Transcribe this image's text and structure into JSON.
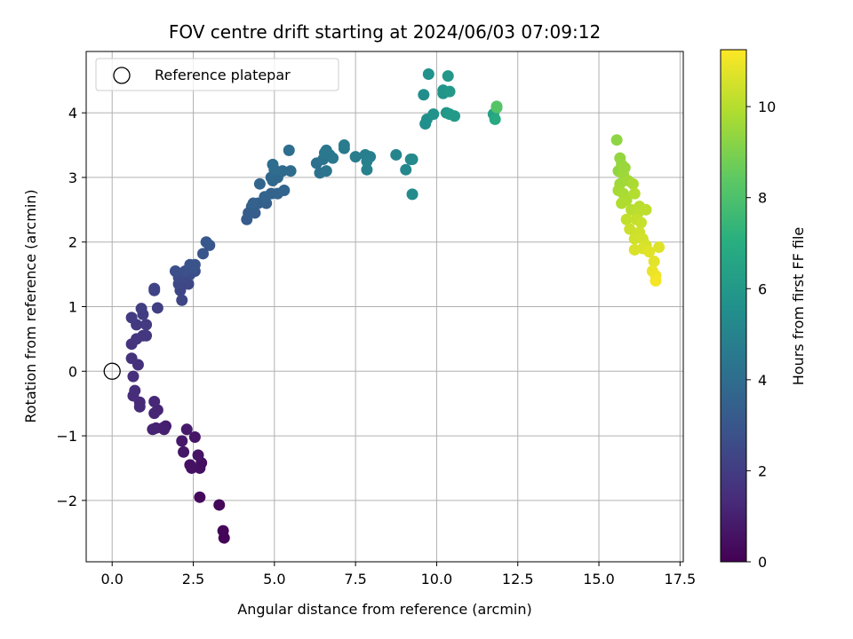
{
  "chart_data": {
    "type": "scatter",
    "title": "FOV centre drift starting at 2024/06/03 07:09:12",
    "xlabel": "Angular distance from reference (arcmin)",
    "ylabel": "Rotation from reference (arcmin)",
    "xlim": [
      -0.8,
      17.6
    ],
    "ylim": [
      -2.95,
      4.95
    ],
    "xticks": [
      0.0,
      2.5,
      5.0,
      7.5,
      10.0,
      12.5,
      15.0,
      17.5
    ],
    "xtick_labels": [
      "0.0",
      "2.5",
      "5.0",
      "7.5",
      "10.0",
      "12.5",
      "15.0",
      "17.5"
    ],
    "yticks": [
      -2,
      -1,
      0,
      1,
      2,
      3,
      4
    ],
    "ytick_labels": [
      "−2",
      "−1",
      "0",
      "1",
      "2",
      "3",
      "4"
    ],
    "grid": true,
    "legend": {
      "position": "top-left",
      "entries": [
        "Reference platepar"
      ]
    },
    "reference_point": {
      "x": 0.0,
      "y": 0.0,
      "label": "Reference platepar"
    },
    "colorbar": {
      "label": "Hours from first FF file",
      "colormap": "viridis",
      "range": [
        0,
        11.25
      ],
      "ticks": [
        0,
        2,
        4,
        6,
        8,
        10
      ],
      "tick_labels": [
        "0",
        "2",
        "4",
        "6",
        "8",
        "10"
      ]
    },
    "points": [
      {
        "x": 3.45,
        "y": -2.58,
        "c": 0.1
      },
      {
        "x": 3.42,
        "y": -2.47,
        "c": 0.15
      },
      {
        "x": 3.3,
        "y": -2.07,
        "c": 0.2
      },
      {
        "x": 2.7,
        "y": -1.95,
        "c": 0.3
      },
      {
        "x": 2.75,
        "y": -1.42,
        "c": 0.4
      },
      {
        "x": 2.7,
        "y": -1.5,
        "c": 0.45
      },
      {
        "x": 2.4,
        "y": -1.45,
        "c": 0.5
      },
      {
        "x": 2.45,
        "y": -1.5,
        "c": 0.55
      },
      {
        "x": 2.65,
        "y": -1.3,
        "c": 0.6
      },
      {
        "x": 2.55,
        "y": -1.02,
        "c": 0.65
      },
      {
        "x": 2.2,
        "y": -1.25,
        "c": 0.7
      },
      {
        "x": 2.15,
        "y": -1.08,
        "c": 0.75
      },
      {
        "x": 2.3,
        "y": -0.9,
        "c": 0.8
      },
      {
        "x": 1.65,
        "y": -0.85,
        "c": 0.9
      },
      {
        "x": 1.6,
        "y": -0.9,
        "c": 0.95
      },
      {
        "x": 1.55,
        "y": -0.88,
        "c": 1.0
      },
      {
        "x": 1.35,
        "y": -0.88,
        "c": 1.05
      },
      {
        "x": 1.25,
        "y": -0.9,
        "c": 1.1
      },
      {
        "x": 1.4,
        "y": -0.6,
        "c": 1.15
      },
      {
        "x": 1.3,
        "y": -0.65,
        "c": 1.2
      },
      {
        "x": 1.3,
        "y": -0.47,
        "c": 1.25
      },
      {
        "x": 0.85,
        "y": -0.48,
        "c": 1.3
      },
      {
        "x": 0.85,
        "y": -0.55,
        "c": 1.35
      },
      {
        "x": 0.65,
        "y": -0.38,
        "c": 1.4
      },
      {
        "x": 0.7,
        "y": -0.3,
        "c": 1.45
      },
      {
        "x": 0.65,
        "y": -0.08,
        "c": 1.5
      },
      {
        "x": 0.8,
        "y": 0.1,
        "c": 1.55
      },
      {
        "x": 0.6,
        "y": 0.2,
        "c": 1.6
      },
      {
        "x": 0.6,
        "y": 0.42,
        "c": 1.65
      },
      {
        "x": 0.75,
        "y": 0.5,
        "c": 1.7
      },
      {
        "x": 0.95,
        "y": 0.55,
        "c": 1.75
      },
      {
        "x": 1.05,
        "y": 0.55,
        "c": 1.8
      },
      {
        "x": 0.75,
        "y": 0.72,
        "c": 1.85
      },
      {
        "x": 1.05,
        "y": 0.72,
        "c": 1.9
      },
      {
        "x": 0.6,
        "y": 0.83,
        "c": 1.95
      },
      {
        "x": 0.95,
        "y": 0.88,
        "c": 2.0
      },
      {
        "x": 0.9,
        "y": 0.97,
        "c": 2.05
      },
      {
        "x": 1.4,
        "y": 0.98,
        "c": 2.1
      },
      {
        "x": 1.3,
        "y": 1.25,
        "c": 2.2
      },
      {
        "x": 1.3,
        "y": 1.28,
        "c": 2.25
      },
      {
        "x": 2.15,
        "y": 1.1,
        "c": 2.3
      },
      {
        "x": 2.1,
        "y": 1.25,
        "c": 2.35
      },
      {
        "x": 2.35,
        "y": 1.35,
        "c": 2.4
      },
      {
        "x": 2.05,
        "y": 1.35,
        "c": 2.45
      },
      {
        "x": 2.2,
        "y": 1.45,
        "c": 2.5
      },
      {
        "x": 2.05,
        "y": 1.45,
        "c": 2.55
      },
      {
        "x": 2.4,
        "y": 1.5,
        "c": 2.6
      },
      {
        "x": 2.55,
        "y": 1.55,
        "c": 2.65
      },
      {
        "x": 1.95,
        "y": 1.55,
        "c": 2.7
      },
      {
        "x": 2.25,
        "y": 1.55,
        "c": 2.75
      },
      {
        "x": 2.5,
        "y": 1.6,
        "c": 2.8
      },
      {
        "x": 2.4,
        "y": 1.65,
        "c": 2.85
      },
      {
        "x": 2.55,
        "y": 1.65,
        "c": 2.9
      },
      {
        "x": 2.8,
        "y": 1.82,
        "c": 2.95
      },
      {
        "x": 3.0,
        "y": 1.95,
        "c": 3.0
      },
      {
        "x": 2.9,
        "y": 2.0,
        "c": 3.05
      },
      {
        "x": 4.15,
        "y": 2.35,
        "c": 3.2
      },
      {
        "x": 4.2,
        "y": 2.45,
        "c": 3.25
      },
      {
        "x": 4.4,
        "y": 2.45,
        "c": 3.3
      },
      {
        "x": 4.3,
        "y": 2.55,
        "c": 3.35
      },
      {
        "x": 4.5,
        "y": 2.6,
        "c": 3.4
      },
      {
        "x": 4.75,
        "y": 2.6,
        "c": 3.45
      },
      {
        "x": 4.35,
        "y": 2.6,
        "c": 3.5
      },
      {
        "x": 4.9,
        "y": 2.75,
        "c": 3.55
      },
      {
        "x": 5.1,
        "y": 2.75,
        "c": 3.6
      },
      {
        "x": 4.7,
        "y": 2.7,
        "c": 3.6
      },
      {
        "x": 5.3,
        "y": 2.8,
        "c": 3.65
      },
      {
        "x": 4.55,
        "y": 2.9,
        "c": 3.7
      },
      {
        "x": 4.95,
        "y": 2.95,
        "c": 3.75
      },
      {
        "x": 5.1,
        "y": 3.0,
        "c": 3.8
      },
      {
        "x": 4.9,
        "y": 3.0,
        "c": 3.8
      },
      {
        "x": 5.25,
        "y": 3.1,
        "c": 3.85
      },
      {
        "x": 5.5,
        "y": 3.1,
        "c": 3.9
      },
      {
        "x": 5.0,
        "y": 3.12,
        "c": 3.95
      },
      {
        "x": 4.95,
        "y": 3.2,
        "c": 4.0
      },
      {
        "x": 5.45,
        "y": 3.42,
        "c": 4.05
      },
      {
        "x": 6.3,
        "y": 3.22,
        "c": 4.15
      },
      {
        "x": 6.4,
        "y": 3.07,
        "c": 4.2
      },
      {
        "x": 6.5,
        "y": 3.28,
        "c": 4.25
      },
      {
        "x": 6.6,
        "y": 3.1,
        "c": 4.3
      },
      {
        "x": 6.7,
        "y": 3.35,
        "c": 4.35
      },
      {
        "x": 6.6,
        "y": 3.42,
        "c": 4.4
      },
      {
        "x": 6.8,
        "y": 3.3,
        "c": 4.45
      },
      {
        "x": 6.55,
        "y": 3.38,
        "c": 4.5
      },
      {
        "x": 7.15,
        "y": 3.45,
        "c": 4.6
      },
      {
        "x": 7.15,
        "y": 3.5,
        "c": 4.65
      },
      {
        "x": 7.5,
        "y": 3.32,
        "c": 4.7
      },
      {
        "x": 7.8,
        "y": 3.35,
        "c": 4.75
      },
      {
        "x": 7.95,
        "y": 3.32,
        "c": 4.8
      },
      {
        "x": 7.85,
        "y": 3.25,
        "c": 4.85
      },
      {
        "x": 7.85,
        "y": 3.12,
        "c": 4.9
      },
      {
        "x": 8.75,
        "y": 3.35,
        "c": 5.1
      },
      {
        "x": 9.05,
        "y": 3.12,
        "c": 5.2
      },
      {
        "x": 9.2,
        "y": 3.28,
        "c": 5.25
      },
      {
        "x": 9.25,
        "y": 3.28,
        "c": 5.3
      },
      {
        "x": 9.25,
        "y": 2.74,
        "c": 5.35
      },
      {
        "x": 9.6,
        "y": 4.28,
        "c": 5.5
      },
      {
        "x": 9.65,
        "y": 3.83,
        "c": 5.55
      },
      {
        "x": 9.7,
        "y": 3.9,
        "c": 5.6
      },
      {
        "x": 9.75,
        "y": 4.6,
        "c": 5.65
      },
      {
        "x": 9.9,
        "y": 3.98,
        "c": 5.7
      },
      {
        "x": 10.2,
        "y": 4.3,
        "c": 5.75
      },
      {
        "x": 10.2,
        "y": 4.35,
        "c": 5.8
      },
      {
        "x": 10.3,
        "y": 4.0,
        "c": 5.85
      },
      {
        "x": 10.35,
        "y": 4.57,
        "c": 5.9
      },
      {
        "x": 10.4,
        "y": 4.33,
        "c": 5.95
      },
      {
        "x": 10.4,
        "y": 3.98,
        "c": 6.0
      },
      {
        "x": 10.55,
        "y": 3.95,
        "c": 6.05
      },
      {
        "x": 11.75,
        "y": 3.98,
        "c": 6.4
      },
      {
        "x": 11.8,
        "y": 3.9,
        "c": 6.8
      },
      {
        "x": 11.85,
        "y": 4.08,
        "c": 8.0
      },
      {
        "x": 11.85,
        "y": 4.1,
        "c": 8.2
      },
      {
        "x": 15.55,
        "y": 3.58,
        "c": 9.3
      },
      {
        "x": 15.6,
        "y": 3.1,
        "c": 9.35
      },
      {
        "x": 15.65,
        "y": 3.3,
        "c": 9.4
      },
      {
        "x": 15.7,
        "y": 3.2,
        "c": 9.45
      },
      {
        "x": 15.8,
        "y": 3.15,
        "c": 9.5
      },
      {
        "x": 15.75,
        "y": 3.05,
        "c": 9.55
      },
      {
        "x": 15.65,
        "y": 2.9,
        "c": 9.6
      },
      {
        "x": 15.9,
        "y": 2.95,
        "c": 9.65
      },
      {
        "x": 15.6,
        "y": 2.8,
        "c": 9.7
      },
      {
        "x": 15.75,
        "y": 2.75,
        "c": 9.75
      },
      {
        "x": 16.05,
        "y": 2.9,
        "c": 9.8
      },
      {
        "x": 15.85,
        "y": 2.65,
        "c": 9.85
      },
      {
        "x": 15.7,
        "y": 2.6,
        "c": 9.9
      },
      {
        "x": 16.1,
        "y": 2.75,
        "c": 9.95
      },
      {
        "x": 16.0,
        "y": 2.5,
        "c": 10.0
      },
      {
        "x": 16.25,
        "y": 2.55,
        "c": 10.05
      },
      {
        "x": 16.2,
        "y": 2.45,
        "c": 10.1
      },
      {
        "x": 16.45,
        "y": 2.5,
        "c": 10.15
      },
      {
        "x": 15.85,
        "y": 2.35,
        "c": 10.2
      },
      {
        "x": 16.15,
        "y": 2.35,
        "c": 10.25
      },
      {
        "x": 16.3,
        "y": 2.3,
        "c": 10.3
      },
      {
        "x": 15.95,
        "y": 2.2,
        "c": 10.35
      },
      {
        "x": 16.25,
        "y": 2.15,
        "c": 10.4
      },
      {
        "x": 16.1,
        "y": 2.05,
        "c": 10.45
      },
      {
        "x": 16.35,
        "y": 2.05,
        "c": 10.5
      },
      {
        "x": 16.45,
        "y": 1.95,
        "c": 10.55
      },
      {
        "x": 16.1,
        "y": 1.88,
        "c": 10.6
      },
      {
        "x": 16.35,
        "y": 1.9,
        "c": 10.65
      },
      {
        "x": 16.85,
        "y": 1.92,
        "c": 10.7
      },
      {
        "x": 16.55,
        "y": 1.85,
        "c": 10.75
      },
      {
        "x": 16.7,
        "y": 1.7,
        "c": 10.8
      },
      {
        "x": 16.65,
        "y": 1.55,
        "c": 10.9
      },
      {
        "x": 16.75,
        "y": 1.48,
        "c": 11.0
      },
      {
        "x": 16.75,
        "y": 1.4,
        "c": 11.1
      }
    ]
  }
}
